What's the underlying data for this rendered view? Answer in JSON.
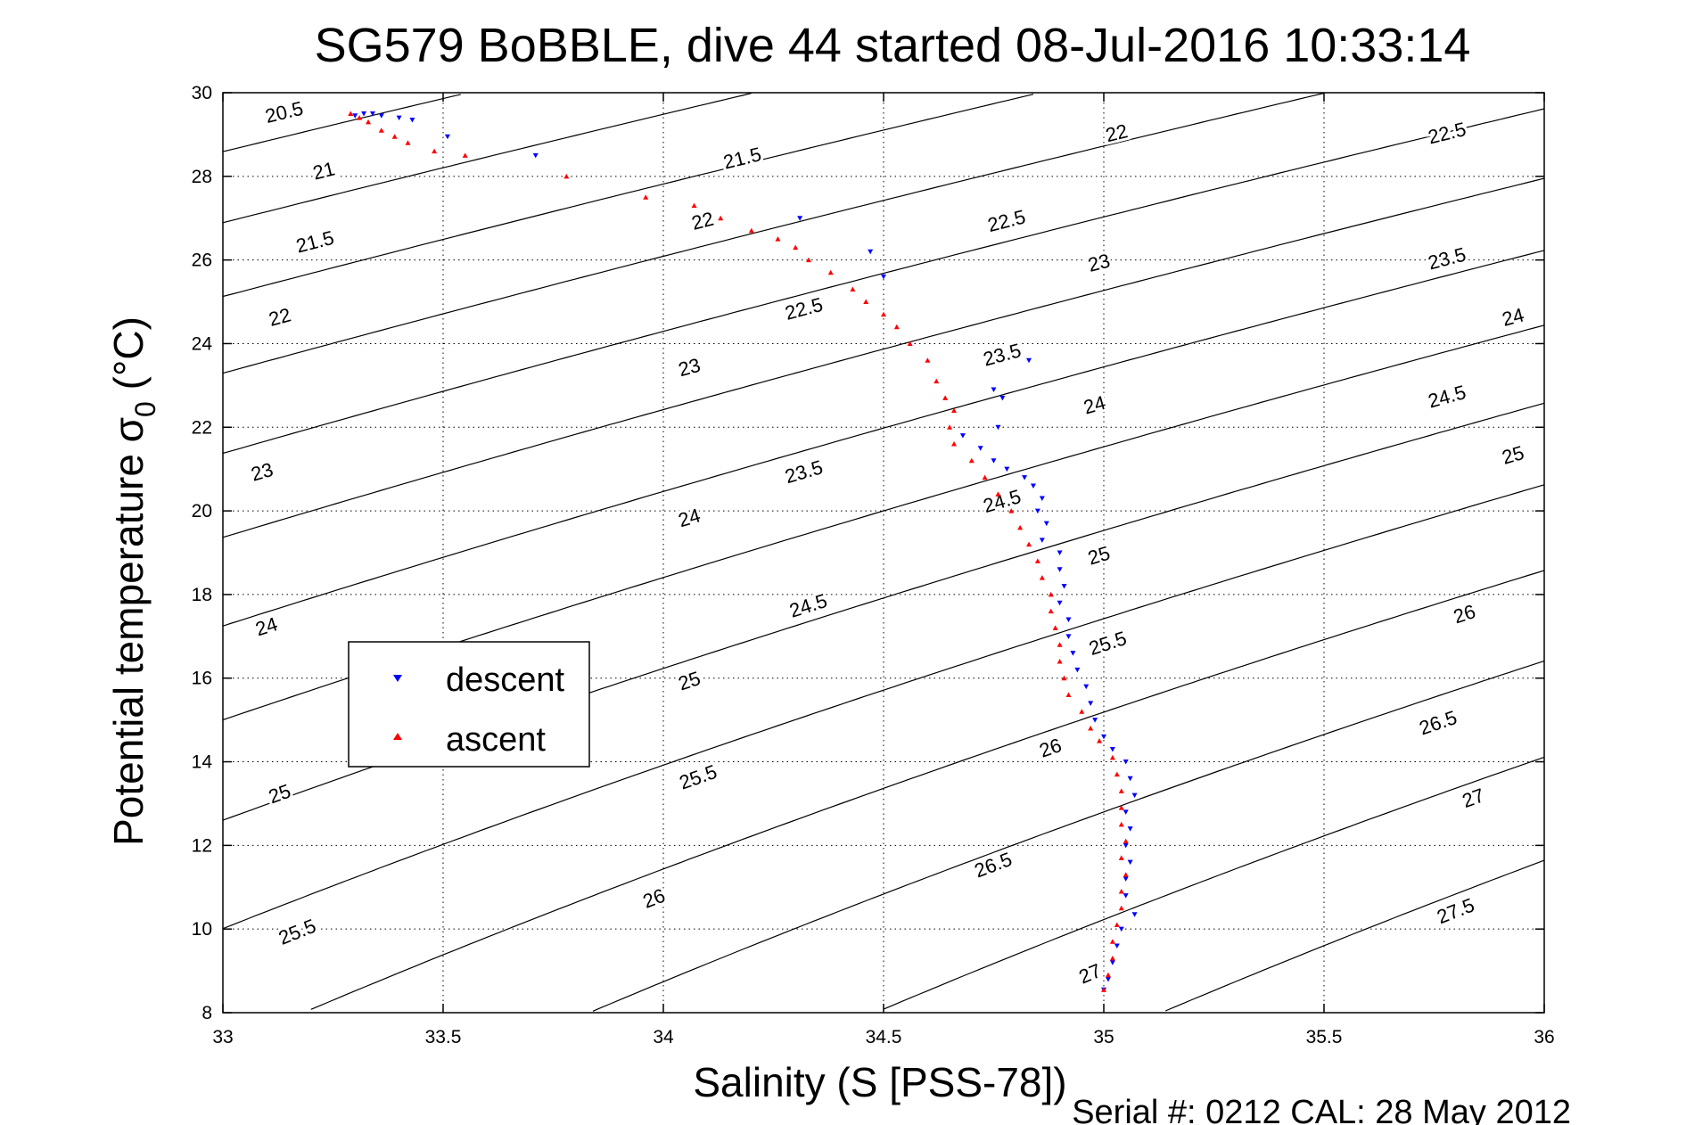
{
  "chart_data": {
    "type": "scatter",
    "title": "SG579 BoBBLE, dive 44 started 08-Jul-2016 10:33:14",
    "xlabel": "Salinity (S [PSS-78])",
    "ylabel_main": "Potential temperature σ",
    "ylabel_sub": "0",
    "ylabel_unit": "(°C)",
    "footer": "Serial #: 0212  CAL: 28 May 2012",
    "xlim": [
      33,
      36
    ],
    "ylim": [
      8,
      30
    ],
    "xticks": [
      "33",
      "33.5",
      "34",
      "34.5",
      "35",
      "35.5",
      "36"
    ],
    "yticks": [
      "8",
      "10",
      "12",
      "14",
      "16",
      "18",
      "20",
      "22",
      "24",
      "26",
      "28",
      "30"
    ],
    "grid": true,
    "legend_position": "center-left",
    "density_contours": {
      "levels": [
        20.5,
        21,
        21.5,
        22,
        22.5,
        23,
        23.5,
        24,
        24.5,
        25,
        25.5,
        26,
        26.5,
        27,
        27.5
      ],
      "labels": [
        {
          "text": "20.5",
          "s": 33.14,
          "t": 29.5
        },
        {
          "text": "21",
          "s": 33.23,
          "t": 28.1
        },
        {
          "text": "21.5",
          "s": 33.21,
          "t": 26.4
        },
        {
          "text": "22",
          "s": 33.13,
          "t": 24.6
        },
        {
          "text": "23",
          "s": 33.09,
          "t": 20.9
        },
        {
          "text": "24",
          "s": 33.1,
          "t": 17.2
        },
        {
          "text": "25",
          "s": 33.13,
          "t": 13.2
        },
        {
          "text": "25.5",
          "s": 33.17,
          "t": 9.9
        },
        {
          "text": "21.5",
          "s": 34.18,
          "t": 28.4
        },
        {
          "text": "22",
          "s": 34.09,
          "t": 26.9
        },
        {
          "text": "22.5",
          "s": 34.32,
          "t": 24.8
        },
        {
          "text": "23",
          "s": 34.06,
          "t": 23.4
        },
        {
          "text": "23.5",
          "s": 34.32,
          "t": 20.9
        },
        {
          "text": "24",
          "s": 34.06,
          "t": 19.8
        },
        {
          "text": "24.5",
          "s": 34.33,
          "t": 17.7
        },
        {
          "text": "25",
          "s": 34.06,
          "t": 15.9
        },
        {
          "text": "25.5",
          "s": 34.08,
          "t": 13.6
        },
        {
          "text": "26",
          "s": 33.98,
          "t": 10.7
        },
        {
          "text": "22",
          "s": 35.03,
          "t": 29.0
        },
        {
          "text": "22.5",
          "s": 34.78,
          "t": 26.9
        },
        {
          "text": "23",
          "s": 34.99,
          "t": 25.9
        },
        {
          "text": "23.5",
          "s": 34.77,
          "t": 23.7
        },
        {
          "text": "24",
          "s": 34.98,
          "t": 22.5
        },
        {
          "text": "24.5",
          "s": 34.77,
          "t": 20.2
        },
        {
          "text": "25",
          "s": 34.99,
          "t": 18.9
        },
        {
          "text": "25.5",
          "s": 35.01,
          "t": 16.8
        },
        {
          "text": "26",
          "s": 34.88,
          "t": 14.3
        },
        {
          "text": "26.5",
          "s": 34.75,
          "t": 11.5
        },
        {
          "text": "27",
          "s": 34.97,
          "t": 8.9
        },
        {
          "text": "22.5",
          "s": 35.78,
          "t": 29.0
        },
        {
          "text": "23.5",
          "s": 35.78,
          "t": 26.0
        },
        {
          "text": "24",
          "s": 35.93,
          "t": 24.6
        },
        {
          "text": "24.5",
          "s": 35.78,
          "t": 22.7
        },
        {
          "text": "25",
          "s": 35.93,
          "t": 21.3
        },
        {
          "text": "26",
          "s": 35.82,
          "t": 17.5
        },
        {
          "text": "26.5",
          "s": 35.76,
          "t": 14.9
        },
        {
          "text": "27",
          "s": 35.84,
          "t": 13.1
        },
        {
          "text": "27.5",
          "s": 35.8,
          "t": 10.4
        }
      ]
    },
    "series": [
      {
        "name": "descent",
        "color": "#0000ff",
        "marker": "triangle-down",
        "points": [
          [
            33.3,
            29.45
          ],
          [
            33.32,
            29.5
          ],
          [
            33.34,
            29.5
          ],
          [
            33.36,
            29.45
          ],
          [
            33.4,
            29.4
          ],
          [
            33.43,
            29.35
          ],
          [
            33.51,
            28.95
          ],
          [
            33.71,
            28.5
          ],
          [
            34.31,
            27.0
          ],
          [
            34.47,
            26.2
          ],
          [
            34.5,
            25.6
          ],
          [
            34.83,
            23.6
          ],
          [
            34.75,
            22.9
          ],
          [
            34.77,
            22.7
          ],
          [
            34.76,
            22.0
          ],
          [
            34.68,
            21.8
          ],
          [
            34.72,
            21.5
          ],
          [
            34.75,
            21.2
          ],
          [
            34.78,
            21.0
          ],
          [
            34.82,
            20.8
          ],
          [
            34.84,
            20.6
          ],
          [
            34.86,
            20.3
          ],
          [
            34.85,
            20.0
          ],
          [
            34.87,
            19.7
          ],
          [
            34.86,
            19.3
          ],
          [
            34.9,
            19.0
          ],
          [
            34.9,
            18.6
          ],
          [
            34.91,
            18.2
          ],
          [
            34.9,
            17.8
          ],
          [
            34.92,
            17.4
          ],
          [
            34.92,
            17.0
          ],
          [
            34.93,
            16.6
          ],
          [
            34.94,
            16.2
          ],
          [
            34.96,
            15.8
          ],
          [
            34.97,
            15.4
          ],
          [
            34.98,
            15.0
          ],
          [
            35.0,
            14.6
          ],
          [
            35.02,
            14.3
          ],
          [
            35.05,
            14.0
          ],
          [
            35.06,
            13.6
          ],
          [
            35.07,
            13.2
          ],
          [
            35.05,
            12.8
          ],
          [
            35.06,
            12.4
          ],
          [
            35.05,
            12.0
          ],
          [
            35.06,
            11.6
          ],
          [
            35.05,
            11.2
          ],
          [
            35.05,
            10.8
          ],
          [
            35.07,
            10.35
          ],
          [
            35.04,
            10.0
          ],
          [
            35.03,
            9.6
          ],
          [
            35.02,
            9.2
          ],
          [
            35.01,
            8.8
          ],
          [
            35.0,
            8.55
          ]
        ]
      },
      {
        "name": "ascent",
        "color": "#ff0000",
        "marker": "triangle-up",
        "points": [
          [
            33.29,
            29.5
          ],
          [
            33.31,
            29.4
          ],
          [
            33.33,
            29.3
          ],
          [
            33.36,
            29.1
          ],
          [
            33.39,
            28.95
          ],
          [
            33.42,
            28.8
          ],
          [
            33.48,
            28.6
          ],
          [
            33.55,
            28.5
          ],
          [
            33.78,
            28.0
          ],
          [
            33.96,
            27.5
          ],
          [
            34.07,
            27.3
          ],
          [
            34.13,
            27.0
          ],
          [
            34.2,
            26.7
          ],
          [
            34.26,
            26.5
          ],
          [
            34.3,
            26.3
          ],
          [
            34.33,
            26.0
          ],
          [
            34.38,
            25.7
          ],
          [
            34.43,
            25.3
          ],
          [
            34.46,
            25.0
          ],
          [
            34.5,
            24.7
          ],
          [
            34.53,
            24.4
          ],
          [
            34.56,
            24.0
          ],
          [
            34.6,
            23.6
          ],
          [
            34.62,
            23.1
          ],
          [
            34.64,
            22.7
          ],
          [
            34.66,
            22.4
          ],
          [
            34.65,
            22.0
          ],
          [
            34.66,
            21.6
          ],
          [
            34.7,
            21.2
          ],
          [
            34.73,
            20.8
          ],
          [
            34.76,
            20.4
          ],
          [
            34.79,
            20.0
          ],
          [
            34.81,
            19.6
          ],
          [
            34.83,
            19.2
          ],
          [
            34.85,
            18.8
          ],
          [
            34.86,
            18.4
          ],
          [
            34.88,
            18.0
          ],
          [
            34.88,
            17.6
          ],
          [
            34.89,
            17.2
          ],
          [
            34.9,
            16.8
          ],
          [
            34.9,
            16.4
          ],
          [
            34.91,
            16.0
          ],
          [
            34.92,
            15.6
          ],
          [
            34.95,
            15.2
          ],
          [
            34.97,
            14.8
          ],
          [
            34.99,
            14.5
          ],
          [
            35.02,
            14.1
          ],
          [
            35.03,
            13.7
          ],
          [
            35.04,
            13.3
          ],
          [
            35.04,
            12.9
          ],
          [
            35.04,
            12.5
          ],
          [
            35.05,
            12.1
          ],
          [
            35.04,
            11.7
          ],
          [
            35.05,
            11.3
          ],
          [
            35.04,
            10.9
          ],
          [
            35.04,
            10.5
          ],
          [
            35.03,
            10.1
          ],
          [
            35.02,
            9.7
          ],
          [
            35.02,
            9.3
          ],
          [
            35.01,
            8.9
          ],
          [
            35.0,
            8.55
          ]
        ]
      }
    ]
  }
}
